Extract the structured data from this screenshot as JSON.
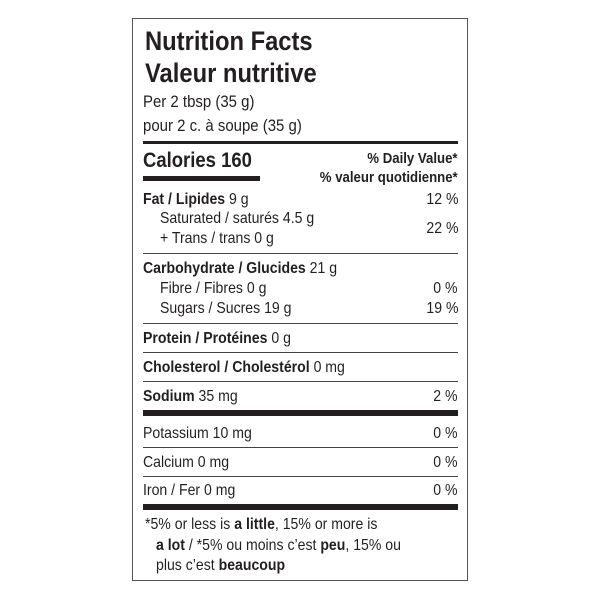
{
  "title_en": "Nutrition Facts",
  "title_fr": "Valeur nutritive",
  "serving_en": "Per 2 tbsp (35 g)",
  "serving_fr": "pour 2 c. à soupe (35 g)",
  "calories": {
    "label": "Calories",
    "value": "160"
  },
  "daily_value_en": "% Daily Value",
  "daily_value_fr": "% valeur quotidienne",
  "asterisk": "*",
  "nutrients": {
    "fat": {
      "label": "Fat / Lipides",
      "amount": "9 g",
      "dv": "12 %"
    },
    "saturated": {
      "label": "Saturated / saturés",
      "amount": "4.5 g"
    },
    "trans": {
      "label": "+ Trans / trans",
      "amount": "0 g"
    },
    "sat_trans_dv": "22 %",
    "carbohydrate": {
      "label": "Carbohydrate / Glucides",
      "amount": "21 g"
    },
    "fibre": {
      "label": "Fibre / Fibres",
      "amount": "0 g",
      "dv": "0 %"
    },
    "sugars": {
      "label": "Sugars / Sucres",
      "amount": "19 g",
      "dv": "19 %"
    },
    "protein": {
      "label": "Protein / Protéines",
      "amount": "0 g"
    },
    "cholesterol": {
      "label": "Cholesterol / Cholestérol",
      "amount": "0 mg"
    },
    "sodium": {
      "label": "Sodium",
      "amount": "35 mg",
      "dv": "2 %"
    },
    "potassium": {
      "label": "Potassium",
      "amount": "10 mg",
      "dv": "0 %"
    },
    "calcium": {
      "label": "Calcium",
      "amount": "0 mg",
      "dv": "0 %"
    },
    "iron": {
      "label": "Iron / Fer",
      "amount": "0 mg",
      "dv": "0 %"
    }
  },
  "footnote": {
    "p1": "*5% or less is ",
    "b1": "a little",
    "p2": ", 15% or more is",
    "b2": "a lot",
    "p3": " / *5% ou moins c’est ",
    "b3": "peu",
    "p4": ", 15% ou",
    "p5": "plus c’est ",
    "b4": "beaucoup"
  }
}
